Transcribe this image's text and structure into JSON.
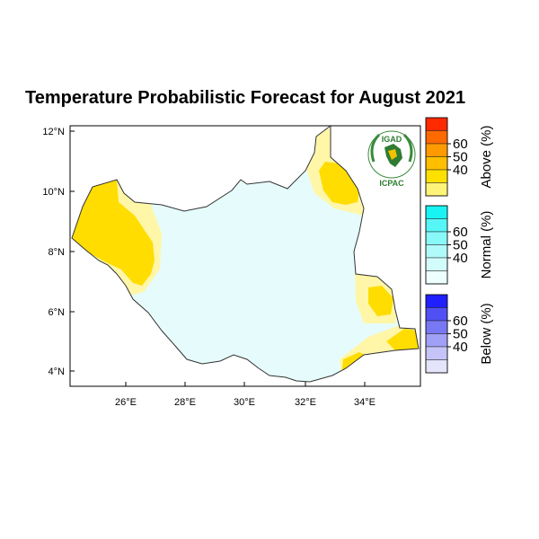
{
  "title": "Temperature Probabilistic Forecast for August 2021",
  "axes": {
    "x_ticks": [
      "26°E",
      "28°E",
      "30°E",
      "32°E",
      "34°E"
    ],
    "y_ticks": [
      "12°N",
      "10°N",
      "8°N",
      "6°N",
      "4°N"
    ],
    "lon_range": [
      24.2,
      35.7
    ],
    "lat_range": [
      3.5,
      12.3
    ]
  },
  "legend": {
    "groups": [
      {
        "label": "Above (%)",
        "ticks": [
          "60",
          "50",
          "40"
        ],
        "colors": [
          "#ff2a00",
          "#ff6a00",
          "#ff9a00",
          "#ffbf00",
          "#ffe100",
          "#fff47a"
        ]
      },
      {
        "label": "Normal (%)",
        "ticks": [
          "60",
          "50",
          "40"
        ],
        "colors": [
          "#18f4f4",
          "#56f6f6",
          "#88f8f8",
          "#b0fafa",
          "#d2fcfc",
          "#ecfefe"
        ]
      },
      {
        "label": "Below (%)",
        "ticks": [
          "60",
          "50",
          "40"
        ],
        "colors": [
          "#2020ff",
          "#5050f4",
          "#7878f4",
          "#a0a0f6",
          "#c4c4f8",
          "#e4e4fb"
        ]
      }
    ]
  },
  "logo": {
    "top_text": "IGAD",
    "bottom_text": "ICPAC"
  },
  "colors": {
    "normal_fill": "#e6fcfc",
    "above_fill": "#ffdd00",
    "above_light": "#fff6a8",
    "border": "#333333"
  }
}
